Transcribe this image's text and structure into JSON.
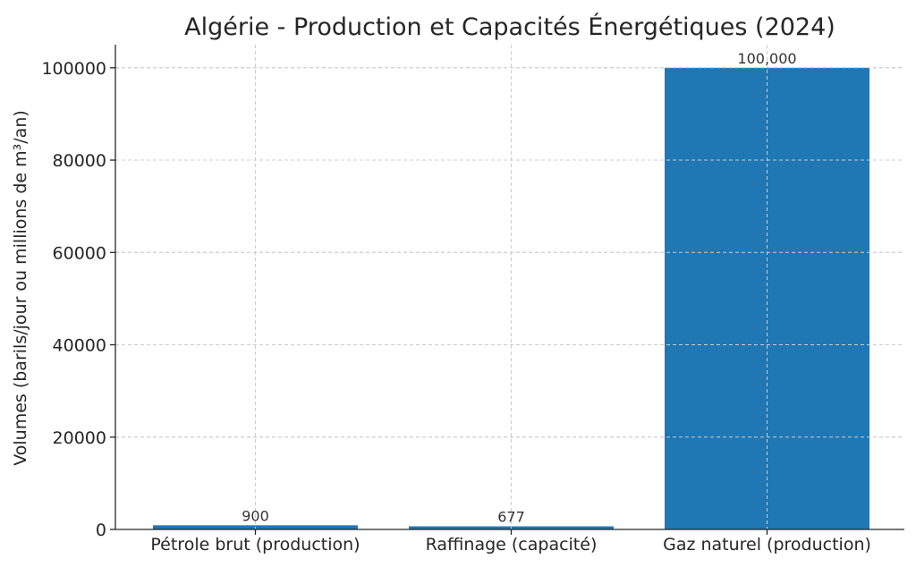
{
  "chart_data": {
    "type": "bar",
    "title": "Algérie - Production et Capacités Énergétiques (2024)",
    "xlabel": "",
    "ylabel": "Volumes (barils/jour ou millions de m³/an)",
    "categories": [
      "Pétrole brut (production)",
      "Raffinage (capacité)",
      "Gaz naturel (production)"
    ],
    "values": [
      900,
      677,
      100000
    ],
    "data_labels": [
      "900",
      "677",
      "100,000"
    ],
    "ylim": [
      0,
      105000
    ],
    "yticks": [
      0,
      20000,
      40000,
      60000,
      80000,
      100000
    ],
    "ytick_labels": [
      "0",
      "20000",
      "40000",
      "60000",
      "80000",
      "100000"
    ],
    "grid": true,
    "colors": {
      "bar": "#1f77b4"
    }
  }
}
